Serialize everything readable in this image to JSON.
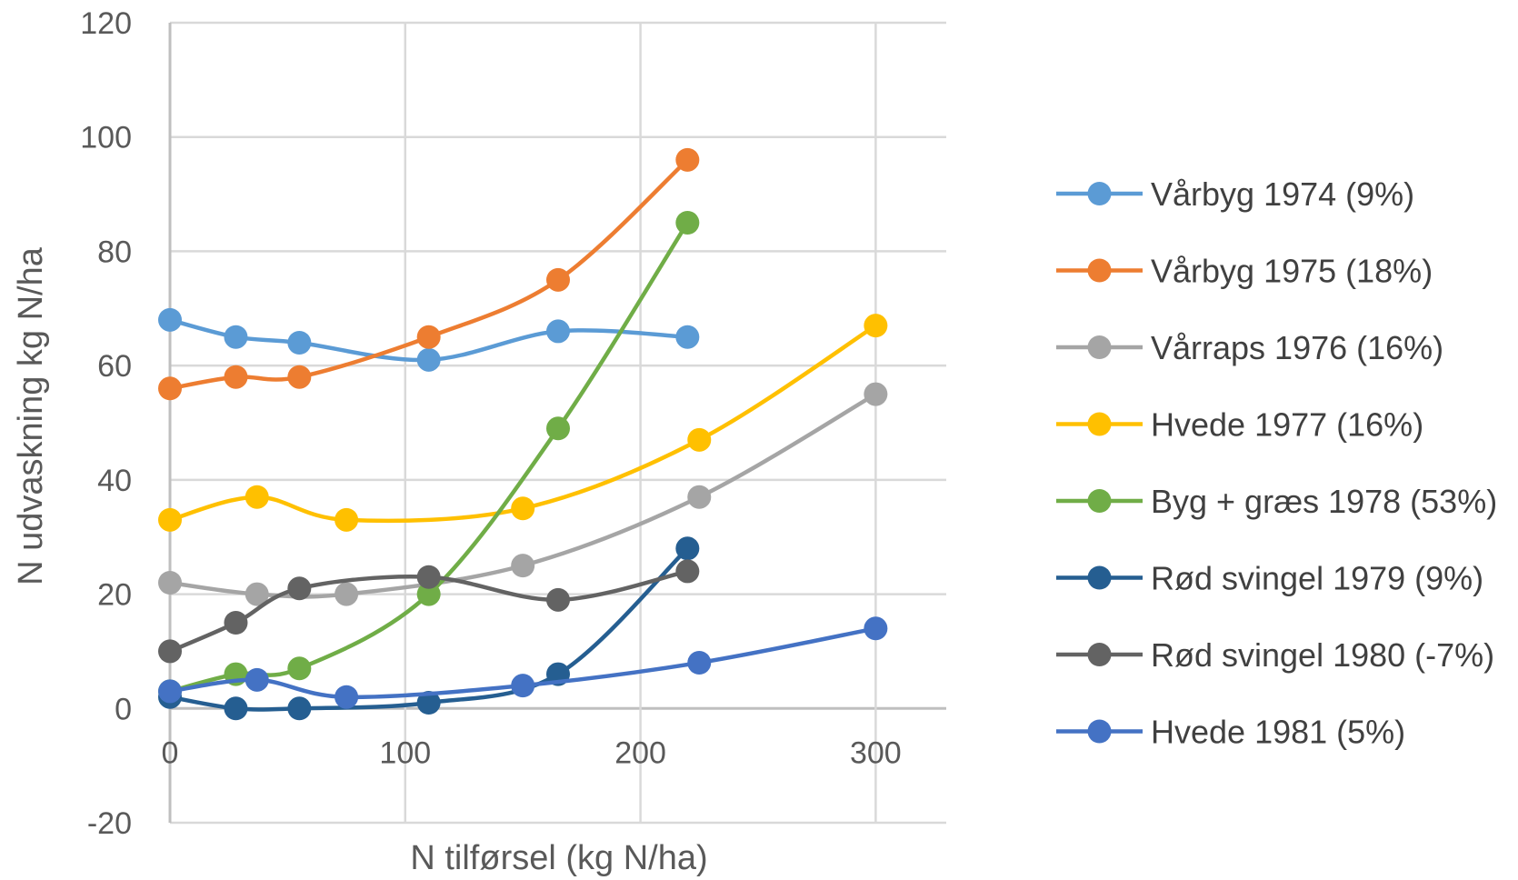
{
  "chart_data": {
    "type": "line",
    "title": "",
    "xlabel": "N tilførsel (kg N/ha)",
    "ylabel": "N udvaskning kg N/ha",
    "xlim": [
      0,
      300
    ],
    "ylim": [
      -20,
      120
    ],
    "xticks": [
      "0",
      "100",
      "200",
      "300"
    ],
    "yticks": [
      "-20",
      "0",
      "20",
      "40",
      "60",
      "80",
      "100",
      "120"
    ],
    "grid": true,
    "legend_position": "right",
    "series": [
      {
        "name": "Vårbyg 1974 (9%)",
        "color": "#5b9bd5",
        "x": [
          0,
          28,
          55,
          110,
          165,
          220
        ],
        "y": [
          68,
          65,
          64,
          61,
          66,
          65
        ]
      },
      {
        "name": "Vårbyg 1975 (18%)",
        "color": "#ed7d31",
        "x": [
          0,
          28,
          55,
          110,
          165,
          220
        ],
        "y": [
          56,
          58,
          58,
          65,
          75,
          96
        ]
      },
      {
        "name": "Vårraps 1976 (16%)",
        "color": "#a5a5a5",
        "x": [
          0,
          37,
          75,
          150,
          225,
          300
        ],
        "y": [
          22,
          20,
          20,
          25,
          37,
          55
        ]
      },
      {
        "name": "Hvede 1977 (16%)",
        "color": "#ffc000",
        "x": [
          0,
          37,
          75,
          150,
          225,
          300
        ],
        "y": [
          33,
          37,
          33,
          35,
          47,
          67
        ]
      },
      {
        "name": "Byg + græs 1978 (53%)",
        "color": "#70ad47",
        "x": [
          0,
          28,
          55,
          110,
          165,
          220
        ],
        "y": [
          3,
          6,
          7,
          20,
          49,
          85
        ]
      },
      {
        "name": "Rød svingel 1979 (9%)",
        "color": "#255e91",
        "x": [
          0,
          28,
          55,
          110,
          165,
          220
        ],
        "y": [
          2,
          0,
          0,
          1,
          6,
          28
        ]
      },
      {
        "name": "Rød svingel 1980 (-7%)",
        "color": "#636363",
        "x": [
          0,
          28,
          55,
          110,
          165,
          220
        ],
        "y": [
          10,
          15,
          21,
          23,
          19,
          24
        ]
      },
      {
        "name": "Hvede 1981 (5%)",
        "color": "#4472c4",
        "x": [
          0,
          37,
          75,
          150,
          225,
          300
        ],
        "y": [
          3,
          5,
          2,
          4,
          8,
          14
        ]
      }
    ]
  }
}
